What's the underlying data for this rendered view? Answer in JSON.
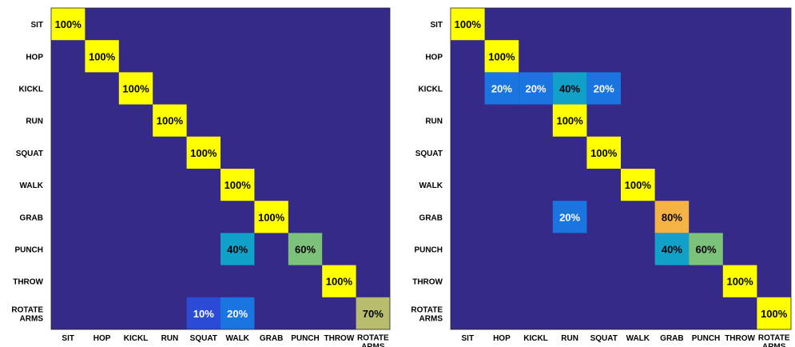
{
  "chart_data": [
    {
      "type": "heatmap",
      "name": "left",
      "row_labels": [
        "SIT",
        "HOP",
        "KICKL",
        "RUN",
        "SQUAT",
        "WALK",
        "GRAB",
        "PUNCH",
        "THROW",
        [
          "ROTATE",
          "ARMS"
        ]
      ],
      "col_labels": [
        "SIT",
        "HOP",
        "KICKL",
        "RUN",
        "SQUAT",
        "WALK",
        "GRAB",
        "PUNCH",
        "THROW",
        [
          "ROTATE",
          "ARMS"
        ]
      ],
      "cells": [
        {
          "row": 0,
          "col": 0,
          "value": 100,
          "label": "100%"
        },
        {
          "row": 1,
          "col": 1,
          "value": 100,
          "label": "100%"
        },
        {
          "row": 2,
          "col": 2,
          "value": 100,
          "label": "100%"
        },
        {
          "row": 3,
          "col": 3,
          "value": 100,
          "label": "100%"
        },
        {
          "row": 4,
          "col": 4,
          "value": 100,
          "label": "100%"
        },
        {
          "row": 5,
          "col": 5,
          "value": 100,
          "label": "100%"
        },
        {
          "row": 6,
          "col": 6,
          "value": 100,
          "label": "100%"
        },
        {
          "row": 7,
          "col": 5,
          "value": 40,
          "label": "40%"
        },
        {
          "row": 7,
          "col": 7,
          "value": 60,
          "label": "60%"
        },
        {
          "row": 8,
          "col": 8,
          "value": 100,
          "label": "100%"
        },
        {
          "row": 9,
          "col": 4,
          "value": 10,
          "label": "10%"
        },
        {
          "row": 9,
          "col": 5,
          "value": 20,
          "label": "20%"
        },
        {
          "row": 9,
          "col": 9,
          "value": 70,
          "label": "70%"
        }
      ]
    },
    {
      "type": "heatmap",
      "name": "right",
      "row_labels": [
        "SIT",
        "HOP",
        "KICKL",
        "RUN",
        "SQUAT",
        "WALK",
        "GRAB",
        "PUNCH",
        "THROW",
        [
          "ROTATE",
          "ARMS"
        ]
      ],
      "col_labels": [
        "SIT",
        "HOP",
        "KICKL",
        "RUN",
        "SQUAT",
        "WALK",
        "GRAB",
        "PUNCH",
        "THROW",
        [
          "ROTATE",
          "ARMS"
        ]
      ],
      "cells": [
        {
          "row": 0,
          "col": 0,
          "value": 100,
          "label": "100%"
        },
        {
          "row": 1,
          "col": 1,
          "value": 100,
          "label": "100%"
        },
        {
          "row": 2,
          "col": 1,
          "value": 20,
          "label": "20%"
        },
        {
          "row": 2,
          "col": 2,
          "value": 20,
          "label": "20%"
        },
        {
          "row": 2,
          "col": 3,
          "value": 40,
          "label": "40%"
        },
        {
          "row": 2,
          "col": 4,
          "value": 20,
          "label": "20%"
        },
        {
          "row": 3,
          "col": 3,
          "value": 100,
          "label": "100%"
        },
        {
          "row": 4,
          "col": 4,
          "value": 100,
          "label": "100%"
        },
        {
          "row": 5,
          "col": 5,
          "value": 100,
          "label": "100%"
        },
        {
          "row": 6,
          "col": 3,
          "value": 20,
          "label": "20%"
        },
        {
          "row": 6,
          "col": 6,
          "value": 80,
          "label": "80%"
        },
        {
          "row": 7,
          "col": 6,
          "value": 40,
          "label": "40%"
        },
        {
          "row": 7,
          "col": 7,
          "value": 60,
          "label": "60%"
        },
        {
          "row": 8,
          "col": 8,
          "value": 100,
          "label": "100%"
        },
        {
          "row": 9,
          "col": 9,
          "value": 100,
          "label": "100%"
        }
      ]
    }
  ],
  "colors": {
    "background": "#352a87",
    "v10": "#2b4ad6",
    "v20": "#1a75e0",
    "v40": "#11a0c8",
    "v60": "#7cc27a",
    "v70": "#b7bd6c",
    "v80": "#f5b245",
    "v100": "#ffff00"
  }
}
